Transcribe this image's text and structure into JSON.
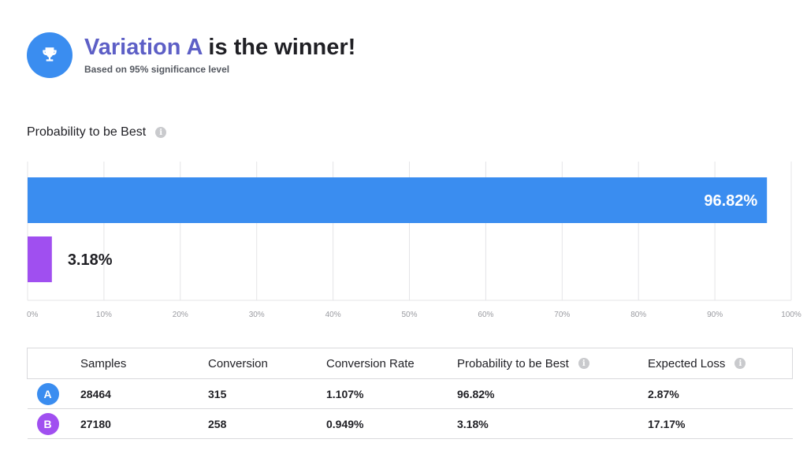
{
  "header": {
    "winner_name": "Variation A",
    "winner_rest": " is the winner!",
    "subtitle": "Based on 95% significance level"
  },
  "chart_section": {
    "title": "Probability to be Best"
  },
  "colors": {
    "accent_blue": "#3a8df0",
    "accent_purple": "#a04ff0",
    "headline_purple": "#5d5fc6",
    "gridline": "#e4e4e7"
  },
  "icons": {
    "trophy": "trophy-icon",
    "info": "info-icon"
  },
  "chart_data": {
    "type": "bar",
    "orientation": "horizontal",
    "title": "Probability to be Best",
    "categories": [
      "A",
      "B"
    ],
    "values": [
      96.82,
      3.18
    ],
    "data_labels": [
      "96.82%",
      "3.18%"
    ],
    "bar_colors": [
      "#3a8df0",
      "#a04ff0"
    ],
    "xlim": [
      0,
      100
    ],
    "x_ticks": [
      "0%",
      "10%",
      "20%",
      "30%",
      "40%",
      "50%",
      "60%",
      "70%",
      "80%",
      "90%",
      "100%"
    ],
    "grid": true,
    "legend": "none"
  },
  "table": {
    "columns": [
      "",
      "Samples",
      "Conversion",
      "Conversion Rate",
      "Probability to be Best",
      "Expected Loss"
    ],
    "rows": [
      {
        "variant": "A",
        "color": "#3a8df0",
        "samples": "28464",
        "conversion": "315",
        "conversion_rate": "1.107%",
        "probability": "96.82%",
        "expected_loss": "2.87%"
      },
      {
        "variant": "B",
        "color": "#a04ff0",
        "samples": "27180",
        "conversion": "258",
        "conversion_rate": "0.949%",
        "probability": "3.18%",
        "expected_loss": "17.17%"
      }
    ]
  }
}
